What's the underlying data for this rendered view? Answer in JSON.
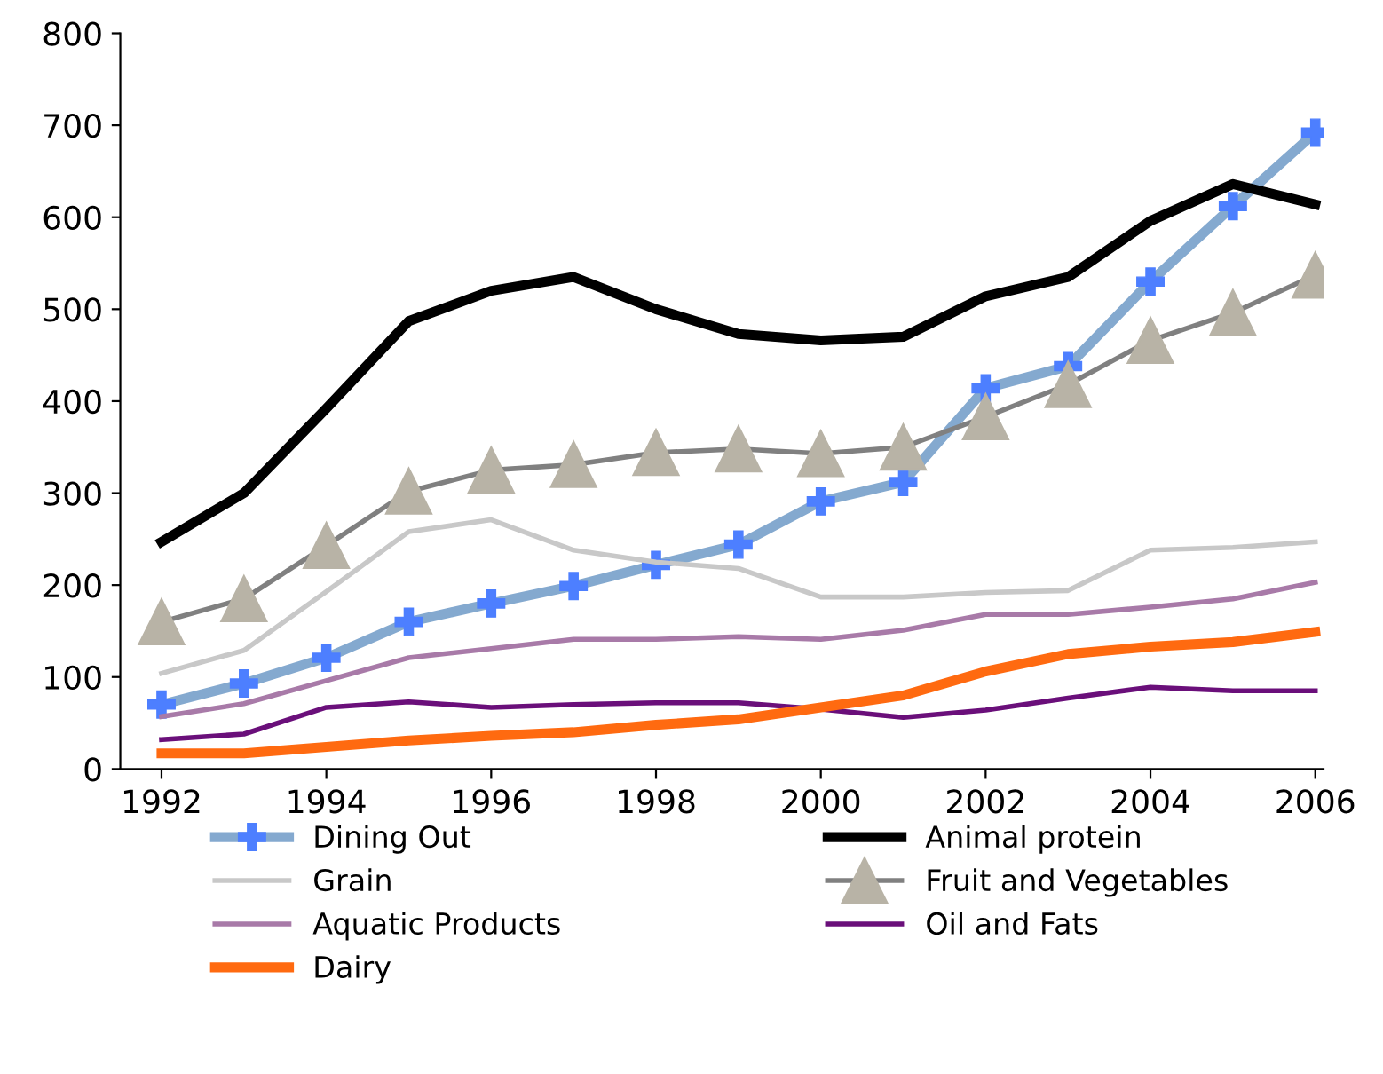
{
  "chart_data": {
    "type": "line",
    "x": [
      1992,
      1993,
      1994,
      1995,
      1996,
      1997,
      1998,
      1999,
      2000,
      2001,
      2002,
      2003,
      2004,
      2005,
      2006
    ],
    "xlim": [
      1991.5,
      2006.1
    ],
    "xticks": [
      1992,
      1994,
      1996,
      1998,
      2000,
      2002,
      2004,
      2006
    ],
    "ylim": [
      0,
      800
    ],
    "yticks": [
      0,
      100,
      200,
      300,
      400,
      500,
      600,
      700,
      800
    ],
    "grid": false,
    "legend": "bottom",
    "series": [
      {
        "name": "Dining Out",
        "color": "#84a9cf",
        "marker": "cross",
        "values": [
          70,
          93,
          121,
          160,
          180,
          199,
          222,
          244,
          291,
          312,
          414,
          438,
          530,
          612,
          692
        ]
      },
      {
        "name": "Animal protein",
        "color": "#000000",
        "marker": "none",
        "values": [
          247,
          300,
          392,
          487,
          520,
          535,
          500,
          473,
          466,
          470,
          514,
          535,
          596,
          636,
          614
        ]
      },
      {
        "name": "Grain",
        "color": "#c8c8c8",
        "marker": "none",
        "values": [
          104,
          129,
          193,
          258,
          271,
          238,
          225,
          218,
          187,
          187,
          192,
          194,
          238,
          241,
          247
        ]
      },
      {
        "name": "Fruit and Vegetables",
        "color": "#808080",
        "marker": "triangle",
        "values": [
          160,
          185,
          243,
          302,
          325,
          331,
          344,
          348,
          343,
          350,
          383,
          418,
          466,
          496,
          537
        ]
      },
      {
        "name": "Aquatic Products",
        "color": "#a87aa8",
        "marker": "none",
        "values": [
          57,
          71,
          96,
          121,
          131,
          141,
          141,
          144,
          141,
          151,
          168,
          168,
          176,
          185,
          203
        ]
      },
      {
        "name": "Oil and Fats",
        "color": "#6a0f7a",
        "marker": "none",
        "values": [
          32,
          38,
          67,
          73,
          67,
          70,
          72,
          72,
          65,
          56,
          64,
          77,
          89,
          85,
          85
        ]
      },
      {
        "name": "Dairy",
        "color": "#ff6a10",
        "marker": "none",
        "values": [
          17,
          17,
          24,
          31,
          36,
          40,
          48,
          54,
          67,
          80,
          106,
          125,
          133,
          138,
          149
        ]
      }
    ]
  }
}
